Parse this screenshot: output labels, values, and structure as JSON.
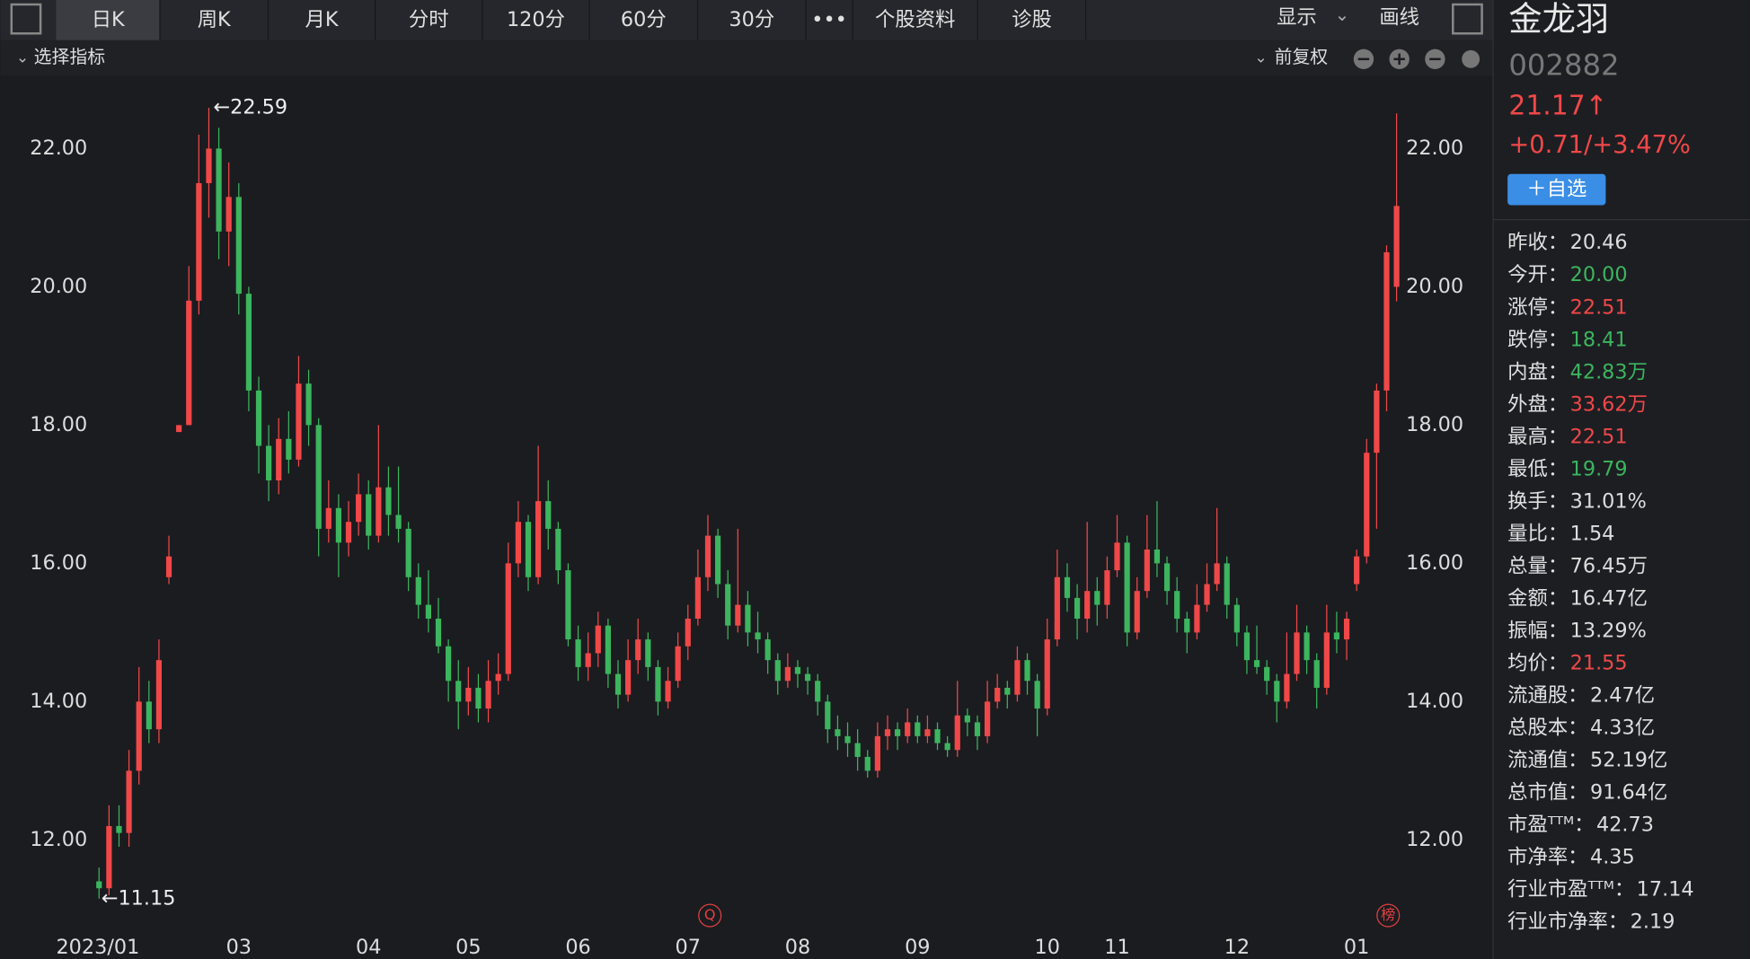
{
  "toolbar": {
    "tabs": [
      "日K",
      "周K",
      "月K",
      "分时",
      "120分",
      "60分",
      "30分",
      "•••",
      "个股资料",
      "诊股"
    ],
    "right": [
      "显示",
      "画线"
    ]
  },
  "subbar": {
    "left": "选择指标",
    "right": "前复权"
  },
  "markers": [
    "Q",
    "榜"
  ],
  "chart_data": {
    "type": "candlestick",
    "annotations": {
      "high": "←22.59",
      "low": "←11.15"
    },
    "up_color": "#f04848",
    "down_color": "#3cb55e",
    "xlim": [
      -0.5,
      130.5
    ],
    "xticks": [
      {
        "value": 0,
        "label": "2023/01"
      },
      {
        "value": 14,
        "label": "03"
      },
      {
        "value": 27,
        "label": "04"
      },
      {
        "value": 37,
        "label": "05"
      },
      {
        "value": 48,
        "label": "06"
      },
      {
        "value": 59,
        "label": "07"
      },
      {
        "value": 70,
        "label": "08"
      },
      {
        "value": 82,
        "label": "09"
      },
      {
        "value": 95,
        "label": "10"
      },
      {
        "value": 102,
        "label": "11"
      },
      {
        "value": 114,
        "label": "12"
      },
      {
        "value": 126,
        "label": "01"
      }
    ],
    "ylim": [
      10.68,
      23.02
    ],
    "yticks": [
      {
        "value": 12,
        "label": "12.00"
      },
      {
        "value": 14,
        "label": "14.00"
      },
      {
        "value": 16,
        "label": "16.00"
      },
      {
        "value": 18,
        "label": "18.00"
      },
      {
        "value": 20,
        "label": "20.00"
      },
      {
        "value": 22,
        "label": "22.00"
      }
    ],
    "ohlc": [
      [
        11.4,
        11.6,
        11.15,
        11.3
      ],
      [
        11.3,
        12.5,
        11.2,
        12.2
      ],
      [
        12.2,
        12.5,
        11.9,
        12.1
      ],
      [
        12.1,
        13.3,
        11.9,
        13.0
      ],
      [
        13.0,
        14.5,
        12.8,
        14.0
      ],
      [
        14.0,
        14.3,
        13.4,
        13.6
      ],
      [
        13.6,
        14.9,
        13.4,
        14.6
      ],
      [
        15.8,
        16.4,
        15.7,
        16.1
      ],
      [
        17.9,
        18.0,
        17.9,
        18.0
      ],
      [
        18.0,
        20.3,
        18.0,
        19.8
      ],
      [
        19.8,
        22.2,
        19.6,
        21.5
      ],
      [
        21.5,
        22.59,
        21.0,
        22.0
      ],
      [
        22.0,
        22.3,
        20.4,
        20.8
      ],
      [
        20.8,
        21.8,
        20.3,
        21.3
      ],
      [
        21.3,
        21.5,
        19.6,
        19.9
      ],
      [
        19.9,
        20.0,
        18.2,
        18.5
      ],
      [
        18.5,
        18.7,
        17.3,
        17.7
      ],
      [
        17.7,
        18.0,
        16.9,
        17.2
      ],
      [
        17.2,
        18.1,
        17.0,
        17.8
      ],
      [
        17.8,
        18.2,
        17.3,
        17.5
      ],
      [
        17.5,
        19.0,
        17.4,
        18.6
      ],
      [
        18.6,
        18.8,
        17.7,
        18.0
      ],
      [
        18.0,
        18.1,
        16.1,
        16.5
      ],
      [
        16.5,
        17.2,
        16.3,
        16.8
      ],
      [
        16.8,
        17.0,
        15.8,
        16.3
      ],
      [
        16.3,
        16.9,
        16.1,
        16.6
      ],
      [
        16.6,
        17.3,
        16.4,
        17.0
      ],
      [
        17.0,
        17.2,
        16.2,
        16.4
      ],
      [
        16.4,
        18.0,
        16.3,
        17.1
      ],
      [
        17.1,
        17.4,
        16.4,
        16.7
      ],
      [
        16.7,
        17.4,
        16.3,
        16.5
      ],
      [
        16.5,
        16.6,
        15.6,
        15.8
      ],
      [
        15.8,
        16.0,
        15.2,
        15.4
      ],
      [
        15.4,
        15.9,
        15.0,
        15.2
      ],
      [
        15.2,
        15.5,
        14.7,
        14.8
      ],
      [
        14.8,
        14.9,
        14.0,
        14.3
      ],
      [
        14.3,
        14.6,
        13.6,
        14.0
      ],
      [
        14.0,
        14.5,
        13.8,
        14.2
      ],
      [
        14.2,
        14.4,
        13.7,
        13.9
      ],
      [
        13.9,
        14.6,
        13.7,
        14.3
      ],
      [
        14.3,
        14.7,
        14.1,
        14.4
      ],
      [
        14.4,
        16.3,
        14.3,
        16.0
      ],
      [
        16.0,
        16.9,
        15.8,
        16.6
      ],
      [
        16.6,
        16.7,
        15.6,
        15.8
      ],
      [
        15.8,
        17.7,
        15.7,
        16.9
      ],
      [
        16.9,
        17.2,
        16.2,
        16.5
      ],
      [
        16.5,
        16.6,
        15.7,
        15.9
      ],
      [
        15.9,
        16.0,
        14.8,
        14.9
      ],
      [
        14.9,
        15.1,
        14.3,
        14.5
      ],
      [
        14.5,
        15.0,
        14.3,
        14.7
      ],
      [
        14.7,
        15.3,
        14.5,
        15.1
      ],
      [
        15.1,
        15.2,
        14.2,
        14.4
      ],
      [
        14.4,
        14.6,
        13.9,
        14.1
      ],
      [
        14.1,
        14.9,
        14.0,
        14.6
      ],
      [
        14.6,
        15.2,
        14.4,
        14.9
      ],
      [
        14.9,
        15.0,
        14.3,
        14.5
      ],
      [
        14.5,
        14.6,
        13.8,
        14.0
      ],
      [
        14.0,
        14.5,
        13.9,
        14.3
      ],
      [
        14.3,
        15.0,
        14.2,
        14.8
      ],
      [
        14.8,
        15.4,
        14.6,
        15.2
      ],
      [
        15.2,
        16.2,
        15.1,
        15.8
      ],
      [
        15.8,
        16.7,
        15.6,
        16.4
      ],
      [
        16.4,
        16.5,
        15.5,
        15.7
      ],
      [
        15.7,
        15.9,
        14.9,
        15.1
      ],
      [
        15.1,
        16.5,
        15.0,
        15.4
      ],
      [
        15.4,
        15.6,
        14.8,
        15.0
      ],
      [
        15.0,
        15.3,
        14.7,
        14.9
      ],
      [
        14.9,
        15.0,
        14.4,
        14.6
      ],
      [
        14.6,
        14.7,
        14.1,
        14.3
      ],
      [
        14.3,
        14.7,
        14.2,
        14.5
      ],
      [
        14.5,
        14.6,
        14.2,
        14.4
      ],
      [
        14.4,
        14.5,
        14.1,
        14.3
      ],
      [
        14.3,
        14.4,
        13.8,
        14.0
      ],
      [
        14.0,
        14.1,
        13.4,
        13.6
      ],
      [
        13.6,
        13.8,
        13.3,
        13.5
      ],
      [
        13.5,
        13.7,
        13.2,
        13.4
      ],
      [
        13.4,
        13.6,
        13.0,
        13.2
      ],
      [
        13.2,
        13.3,
        12.9,
        13.0
      ],
      [
        13.0,
        13.7,
        12.9,
        13.5
      ],
      [
        13.5,
        13.8,
        13.3,
        13.6
      ],
      [
        13.6,
        13.7,
        13.3,
        13.5
      ],
      [
        13.5,
        13.9,
        13.4,
        13.7
      ],
      [
        13.7,
        13.8,
        13.4,
        13.5
      ],
      [
        13.5,
        13.8,
        13.4,
        13.6
      ],
      [
        13.6,
        13.7,
        13.3,
        13.4
      ],
      [
        13.4,
        13.5,
        13.2,
        13.3
      ],
      [
        13.3,
        14.3,
        13.2,
        13.8
      ],
      [
        13.8,
        13.9,
        13.5,
        13.7
      ],
      [
        13.7,
        13.8,
        13.3,
        13.5
      ],
      [
        13.5,
        14.3,
        13.4,
        14.0
      ],
      [
        14.0,
        14.4,
        13.9,
        14.2
      ],
      [
        14.2,
        14.3,
        13.9,
        14.1
      ],
      [
        14.1,
        14.8,
        14.0,
        14.6
      ],
      [
        14.6,
        14.7,
        14.1,
        14.3
      ],
      [
        14.3,
        14.4,
        13.5,
        13.9
      ],
      [
        13.9,
        15.2,
        13.8,
        14.9
      ],
      [
        14.9,
        16.2,
        14.8,
        15.8
      ],
      [
        15.8,
        16.0,
        15.3,
        15.5
      ],
      [
        15.5,
        15.7,
        14.9,
        15.2
      ],
      [
        15.2,
        16.6,
        15.0,
        15.6
      ],
      [
        15.6,
        15.8,
        15.1,
        15.4
      ],
      [
        15.4,
        16.1,
        15.2,
        15.9
      ],
      [
        15.9,
        16.7,
        15.8,
        16.3
      ],
      [
        16.3,
        16.4,
        14.8,
        15.0
      ],
      [
        15.0,
        15.8,
        14.9,
        15.6
      ],
      [
        15.6,
        16.7,
        15.5,
        16.2
      ],
      [
        16.2,
        16.9,
        15.8,
        16.0
      ],
      [
        16.0,
        16.1,
        15.4,
        15.6
      ],
      [
        15.6,
        15.8,
        15.0,
        15.2
      ],
      [
        15.2,
        15.3,
        14.7,
        15.0
      ],
      [
        15.0,
        15.7,
        14.9,
        15.4
      ],
      [
        15.4,
        16.0,
        15.3,
        15.7
      ],
      [
        15.7,
        16.8,
        15.6,
        16.0
      ],
      [
        16.0,
        16.1,
        15.2,
        15.4
      ],
      [
        15.4,
        15.5,
        14.8,
        15.0
      ],
      [
        15.0,
        15.1,
        14.4,
        14.6
      ],
      [
        14.6,
        15.1,
        14.4,
        14.5
      ],
      [
        14.5,
        14.6,
        14.1,
        14.3
      ],
      [
        14.3,
        14.4,
        13.7,
        14.0
      ],
      [
        14.0,
        15.0,
        13.9,
        14.4
      ],
      [
        14.4,
        15.4,
        14.3,
        15.0
      ],
      [
        15.0,
        15.1,
        14.4,
        14.6
      ],
      [
        14.6,
        14.7,
        13.9,
        14.2
      ],
      [
        14.2,
        15.4,
        14.1,
        15.0
      ],
      [
        15.0,
        15.3,
        14.7,
        14.9
      ],
      [
        14.9,
        15.3,
        14.6,
        15.2
      ],
      [
        15.7,
        16.2,
        15.6,
        16.1
      ],
      [
        16.1,
        17.8,
        16.0,
        17.6
      ],
      [
        17.6,
        18.6,
        16.5,
        18.5
      ],
      [
        18.5,
        20.6,
        18.2,
        20.5
      ],
      [
        20.0,
        22.51,
        19.79,
        21.17
      ]
    ]
  },
  "quote": {
    "name": "金龙羽",
    "code": "002882",
    "price": "21.17↑",
    "change": "+0.71/+3.47%",
    "button": "＋自选",
    "stats": [
      [
        "昨收：",
        "20.46",
        "#dddddd"
      ],
      [
        "今开：",
        "20.00",
        "#3cb55e"
      ],
      [
        "涨停：",
        "22.51",
        "#f04848"
      ],
      [
        "跌停：",
        "18.41",
        "#3cb55e"
      ],
      [
        "内盘：",
        "42.83万",
        "#3cb55e"
      ],
      [
        "外盘：",
        "33.62万",
        "#f04848"
      ],
      [
        "最高：",
        "22.51",
        "#f04848"
      ],
      [
        "最低：",
        "19.79",
        "#3cb55e"
      ],
      [
        "换手：",
        "31.01%",
        "#dddddd"
      ],
      [
        "量比：",
        "1.54",
        "#dddddd"
      ],
      [
        "总量：",
        "76.45万",
        "#dddddd"
      ],
      [
        "金额：",
        "16.47亿",
        "#dddddd"
      ],
      [
        "振幅：",
        "13.29%",
        "#dddddd"
      ],
      [
        "均价：",
        "21.55",
        "#f04848"
      ],
      [
        "流通股：",
        "2.47亿",
        "#dddddd"
      ],
      [
        "总股本：",
        "4.33亿",
        "#dddddd"
      ],
      [
        "流通值：",
        "52.19亿",
        "#dddddd"
      ],
      [
        "总市值：",
        "91.64亿",
        "#dddddd"
      ],
      [
        "市盈ᵀᵀᴹ：",
        "42.73",
        "#dddddd"
      ],
      [
        "市净率：",
        "4.35",
        "#dddddd"
      ],
      [
        "行业市盈ᵀᵀᴹ：",
        "17.14",
        "#dddddd"
      ],
      [
        "行业市净率：",
        "2.19",
        "#dddddd"
      ]
    ]
  }
}
